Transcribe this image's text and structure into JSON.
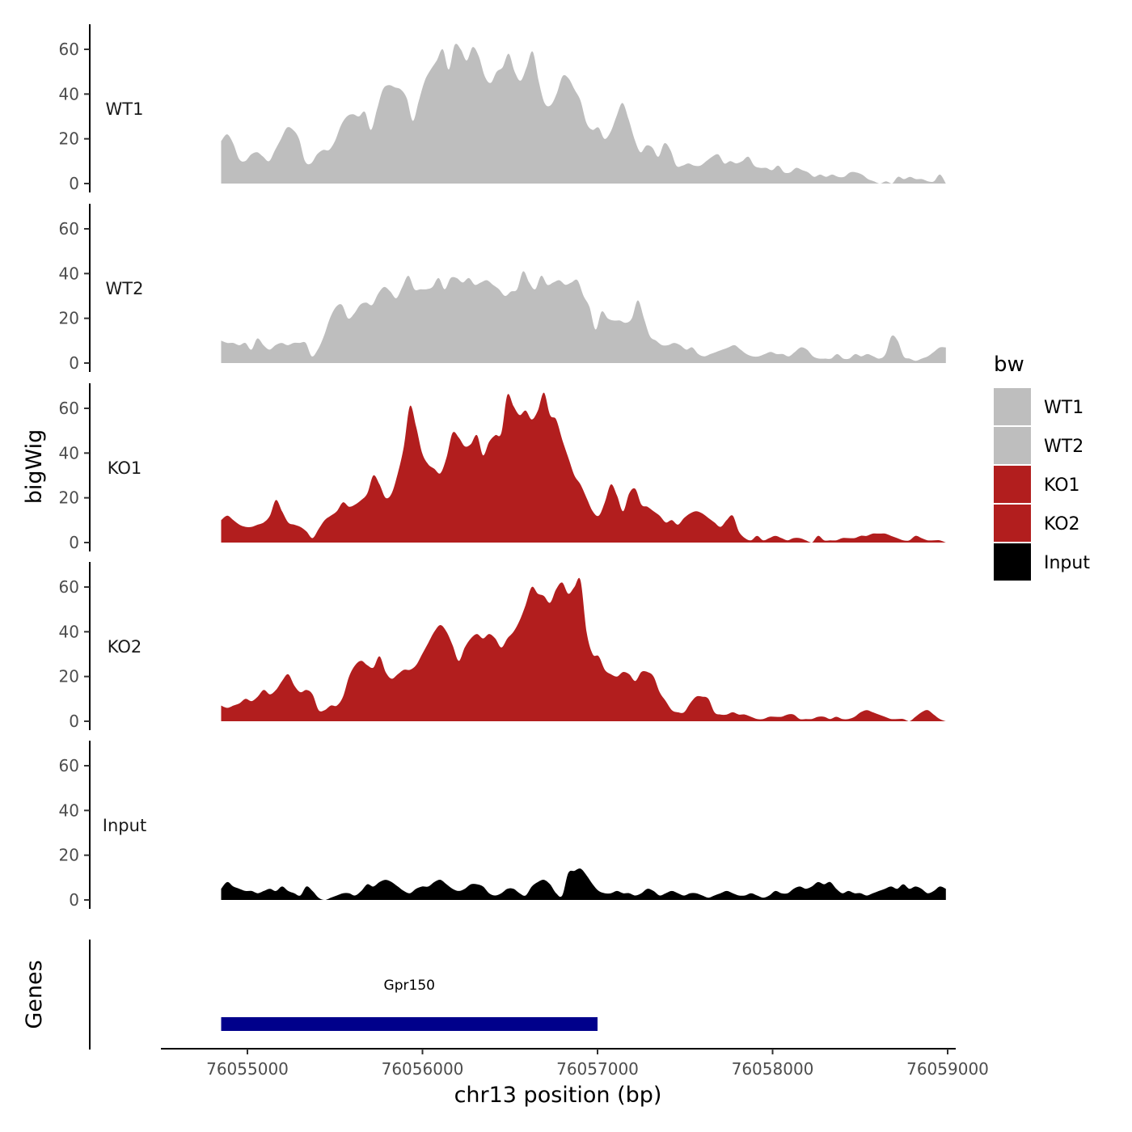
{
  "chart_data": {
    "type": "area",
    "title": "",
    "xlabel": "chr13 position (bp)",
    "ylabel": "bigWig",
    "genes_label": "Genes",
    "xlim": [
      76054500,
      76059200
    ],
    "ylim": [
      0,
      70
    ],
    "x_ticks": [
      76055000,
      76056000,
      76057000,
      76058000,
      76059000
    ],
    "x_tick_labels": [
      "76055000",
      "76056000",
      "76057000",
      "76058000",
      "76059000"
    ],
    "y_ticks": [
      0,
      20,
      40,
      60
    ],
    "y_tick_labels": [
      "0",
      "20",
      "40",
      "60"
    ],
    "x_range": [
      76054850,
      76058990
    ],
    "legend": {
      "title": "bw",
      "position": "right"
    },
    "tracks": [
      {
        "name": "WT1",
        "color": "#BEBEBE",
        "values": [
          19,
          22,
          18,
          11,
          10,
          13,
          14,
          12,
          10,
          15,
          20,
          25,
          24,
          20,
          10,
          9,
          13,
          15,
          15,
          19,
          26,
          30,
          31,
          30,
          32,
          24,
          33,
          42,
          44,
          43,
          42,
          38,
          28,
          37,
          46,
          51,
          55,
          60,
          51,
          62,
          60,
          55,
          61,
          57,
          48,
          45,
          50,
          52,
          58,
          50,
          46,
          52,
          59,
          46,
          36,
          35,
          40,
          48,
          47,
          42,
          37,
          27,
          24,
          25,
          20,
          23,
          30,
          36,
          29,
          20,
          14,
          17,
          16,
          12,
          18,
          15,
          8,
          8,
          9,
          8,
          8,
          10,
          12,
          13,
          9,
          10,
          9,
          10,
          12,
          8,
          7,
          7,
          6,
          8,
          5,
          5,
          7,
          6,
          5,
          3,
          4,
          3,
          4,
          3,
          3,
          5,
          5,
          4,
          2,
          1,
          0,
          1,
          0,
          3,
          2,
          3,
          2,
          2,
          1,
          1,
          4,
          0
        ]
      },
      {
        "name": "WT2",
        "color": "#BEBEBE",
        "values": [
          10,
          9,
          9,
          8,
          9,
          6,
          11,
          8,
          6,
          8,
          9,
          8,
          9,
          9,
          9,
          3,
          6,
          12,
          20,
          25,
          26,
          20,
          22,
          26,
          27,
          26,
          31,
          34,
          32,
          29,
          34,
          39,
          33,
          33,
          33,
          34,
          38,
          33,
          38,
          38,
          36,
          38,
          35,
          36,
          37,
          35,
          33,
          30,
          32,
          33,
          41,
          36,
          33,
          39,
          35,
          36,
          37,
          35,
          36,
          37,
          30,
          25,
          15,
          23,
          20,
          19,
          19,
          18,
          20,
          28,
          20,
          12,
          10,
          8,
          8,
          9,
          8,
          6,
          7,
          4,
          3,
          4,
          5,
          6,
          7,
          8,
          6,
          4,
          3,
          3,
          4,
          5,
          4,
          4,
          3,
          5,
          7,
          6,
          3,
          2,
          2,
          2,
          4,
          2,
          2,
          4,
          3,
          4,
          3,
          2,
          4,
          12,
          10,
          3,
          2,
          1,
          2,
          3,
          5,
          7,
          7
        ]
      },
      {
        "name": "KO1",
        "color": "#B21E1E",
        "values": [
          10,
          12,
          10,
          8,
          7,
          7,
          8,
          9,
          12,
          19,
          14,
          9,
          8,
          7,
          5,
          2,
          6,
          10,
          12,
          14,
          18,
          16,
          17,
          19,
          22,
          30,
          26,
          20,
          22,
          31,
          43,
          61,
          52,
          40,
          35,
          33,
          31,
          38,
          49,
          47,
          43,
          44,
          48,
          39,
          45,
          48,
          49,
          66,
          61,
          57,
          59,
          55,
          59,
          67,
          57,
          55,
          46,
          38,
          30,
          26,
          20,
          14,
          12,
          18,
          26,
          21,
          14,
          22,
          24,
          17,
          16,
          14,
          12,
          9,
          10,
          8,
          11,
          13,
          14,
          13,
          11,
          9,
          7,
          10,
          12,
          5,
          2,
          1,
          3,
          1,
          2,
          3,
          2,
          1,
          2,
          2,
          1,
          0,
          3,
          1,
          1,
          1,
          2,
          2,
          2,
          3,
          3,
          4,
          4,
          4,
          3,
          2,
          1,
          1,
          3,
          2,
          1,
          1,
          1,
          0
        ]
      },
      {
        "name": "KO2",
        "color": "#B21E1E",
        "values": [
          7,
          6,
          7,
          8,
          10,
          9,
          11,
          14,
          12,
          14,
          18,
          21,
          16,
          13,
          14,
          12,
          5,
          5,
          7,
          7,
          11,
          20,
          25,
          27,
          25,
          24,
          29,
          22,
          19,
          21,
          23,
          23,
          25,
          30,
          35,
          40,
          43,
          40,
          34,
          27,
          33,
          37,
          39,
          37,
          39,
          37,
          33,
          37,
          40,
          45,
          52,
          60,
          57,
          56,
          53,
          59,
          62,
          57,
          60,
          63,
          40,
          30,
          29,
          23,
          21,
          20,
          22,
          21,
          18,
          22,
          22,
          20,
          13,
          9,
          5,
          4,
          4,
          8,
          11,
          11,
          10,
          4,
          3,
          3,
          4,
          3,
          3,
          2,
          1,
          1,
          2,
          2,
          2,
          3,
          3,
          1,
          1,
          1,
          2,
          2,
          1,
          2,
          1,
          1,
          2,
          4,
          5,
          4,
          3,
          2,
          1,
          1,
          1,
          0,
          2,
          4,
          5,
          3,
          1,
          0
        ]
      },
      {
        "name": "Input",
        "color": "#000000",
        "values": [
          5,
          8,
          6,
          5,
          4,
          4,
          3,
          4,
          5,
          4,
          6,
          4,
          3,
          2,
          6,
          4,
          1,
          0,
          1,
          2,
          3,
          3,
          2,
          4,
          7,
          6,
          8,
          9,
          8,
          6,
          4,
          3,
          5,
          6,
          6,
          8,
          9,
          7,
          5,
          4,
          5,
          7,
          7,
          6,
          3,
          2,
          3,
          5,
          5,
          3,
          2,
          6,
          8,
          9,
          7,
          3,
          2,
          12,
          13,
          14,
          11,
          7,
          4,
          3,
          3,
          4,
          3,
          3,
          2,
          3,
          5,
          4,
          2,
          3,
          4,
          3,
          2,
          3,
          3,
          2,
          1,
          2,
          3,
          4,
          3,
          2,
          2,
          3,
          2,
          1,
          2,
          4,
          3,
          3,
          5,
          6,
          5,
          6,
          8,
          7,
          8,
          5,
          3,
          4,
          3,
          3,
          2,
          3,
          4,
          5,
          6,
          5,
          7,
          5,
          6,
          5,
          3,
          4,
          6,
          5
        ]
      }
    ],
    "genes": [
      {
        "name": "Gpr150",
        "start": 76054850,
        "end": 76057000,
        "color": "#00008B"
      }
    ]
  }
}
